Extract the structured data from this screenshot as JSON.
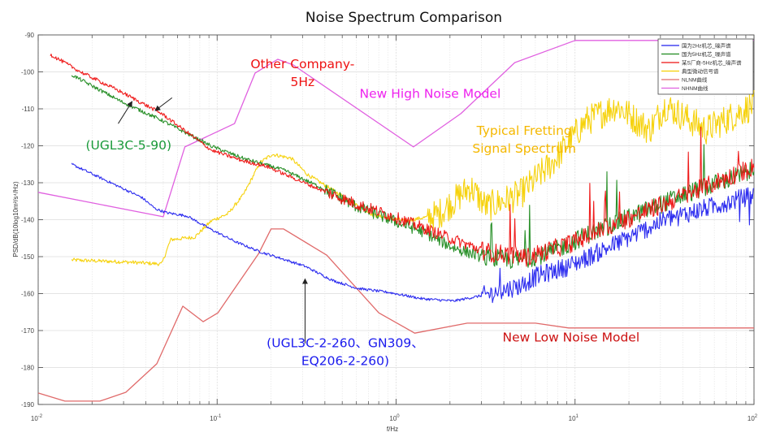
{
  "chart_data": {
    "type": "line",
    "title": "Noise Spectrum Comparison",
    "xlabel": "f/Hz",
    "ylabel": "PSD/dB(10log10m²/s⁴/Hz)",
    "xscale": "log",
    "xlim": [
      0.01,
      100
    ],
    "ylim": [
      -190,
      -90
    ],
    "grid": true,
    "legend_position": "top-right",
    "x_ticks": [
      {
        "value": 0.01,
        "base": "10",
        "exp": "-2"
      },
      {
        "value": 0.1,
        "base": "10",
        "exp": "-1"
      },
      {
        "value": 1,
        "base": "10",
        "exp": "0"
      },
      {
        "value": 10,
        "base": "10",
        "exp": "1"
      },
      {
        "value": 100,
        "base": "10",
        "exp": "2"
      }
    ],
    "y_ticks": [
      -90,
      -100,
      -110,
      -120,
      -130,
      -140,
      -150,
      -160,
      -170,
      -180,
      -190
    ],
    "series": [
      {
        "name": "国为2Hz机芯_噪声谱",
        "color": "#2222ee",
        "noisy_from": 3.0,
        "points": [
          [
            0.0154,
            -125
          ],
          [
            0.038,
            -134
          ],
          [
            0.045,
            -137
          ],
          [
            0.052,
            -138.1
          ],
          [
            0.068,
            -139
          ],
          [
            0.093,
            -142.7
          ],
          [
            0.127,
            -146
          ],
          [
            0.174,
            -148.7
          ],
          [
            0.225,
            -150.4
          ],
          [
            0.31,
            -152.6
          ],
          [
            0.44,
            -156.4
          ],
          [
            0.61,
            -158.6
          ],
          [
            0.92,
            -159.7
          ],
          [
            1.4,
            -161.4
          ],
          [
            2.1,
            -162
          ],
          [
            3.2,
            -160.3
          ],
          [
            4.9,
            -157.9
          ],
          [
            6.1,
            -155.3
          ],
          [
            9.2,
            -152.6
          ],
          [
            17,
            -146.5
          ],
          [
            32,
            -139.9
          ],
          [
            100,
            -133.3
          ]
        ]
      },
      {
        "name": "国为5Hz机芯_噪声谱",
        "color": "#1e8a1e",
        "noisy_from": 0.4,
        "points": [
          [
            0.0154,
            -100.8
          ],
          [
            0.029,
            -108
          ],
          [
            0.049,
            -113.1
          ],
          [
            0.093,
            -120.1
          ],
          [
            0.14,
            -123.4
          ],
          [
            0.24,
            -126.7
          ],
          [
            0.4,
            -131.8
          ],
          [
            0.61,
            -136.6
          ],
          [
            0.92,
            -139.9
          ],
          [
            1.4,
            -143.2
          ],
          [
            2.1,
            -147.6
          ],
          [
            3.2,
            -150.4
          ],
          [
            4.9,
            -151
          ],
          [
            7.5,
            -148.7
          ],
          [
            11.4,
            -144.3
          ],
          [
            21.5,
            -138.8
          ],
          [
            40,
            -133.3
          ],
          [
            100,
            -126.7
          ]
        ]
      },
      {
        "name": "某S厂商-5Hz机芯_噪声谱",
        "color": "#ee1111",
        "noisy_from": 0.4,
        "points": [
          [
            0.0117,
            -95.3
          ],
          [
            0.0174,
            -100.1
          ],
          [
            0.029,
            -105.4
          ],
          [
            0.049,
            -111.3
          ],
          [
            0.093,
            -121.2
          ],
          [
            0.14,
            -124.1
          ],
          [
            0.19,
            -125.6
          ],
          [
            0.26,
            -128.5
          ],
          [
            0.4,
            -132.4
          ],
          [
            0.61,
            -135.9
          ],
          [
            0.92,
            -138.8
          ],
          [
            1.4,
            -142.1
          ],
          [
            2.1,
            -145.4
          ],
          [
            3.2,
            -148.7
          ],
          [
            5.4,
            -150.2
          ],
          [
            9.2,
            -146.6
          ],
          [
            17,
            -141.1
          ],
          [
            32,
            -135.6
          ],
          [
            100,
            -125.6
          ]
        ]
      },
      {
        "name": "典型微动信号谱",
        "color": "#f5d000",
        "noisy_from": 1.5,
        "points": [
          [
            0.0154,
            -150.9
          ],
          [
            0.0326,
            -151.5
          ],
          [
            0.049,
            -152
          ],
          [
            0.055,
            -145.4
          ],
          [
            0.075,
            -144.7
          ],
          [
            0.093,
            -140.3
          ],
          [
            0.115,
            -138.4
          ],
          [
            0.14,
            -133.3
          ],
          [
            0.174,
            -124.5
          ],
          [
            0.203,
            -122.3
          ],
          [
            0.26,
            -123.4
          ],
          [
            0.32,
            -127.8
          ],
          [
            0.49,
            -133.3
          ],
          [
            0.75,
            -138.8
          ],
          [
            1.13,
            -140.3
          ],
          [
            1.7,
            -138.8
          ],
          [
            2.6,
            -131.1
          ],
          [
            3.2,
            -136.6
          ],
          [
            4.9,
            -133.3
          ],
          [
            7.5,
            -124.5
          ],
          [
            11.4,
            -113.5
          ],
          [
            17,
            -109.1
          ],
          [
            26,
            -115.7
          ],
          [
            32,
            -109.1
          ],
          [
            54,
            -115.7
          ],
          [
            100,
            -108.9
          ]
        ]
      },
      {
        "name": "NLNM曲线",
        "color": "#e06a6a",
        "noisy_from": null,
        "points": [
          [
            0.01,
            -186.9
          ],
          [
            0.0141,
            -189.1
          ],
          [
            0.0221,
            -189.1
          ],
          [
            0.0309,
            -186.7
          ],
          [
            0.046,
            -179
          ],
          [
            0.0643,
            -163.4
          ],
          [
            0.0836,
            -167.6
          ],
          [
            0.101,
            -165.2
          ],
          [
            0.17,
            -149.3
          ],
          [
            0.2,
            -142.5
          ],
          [
            0.235,
            -142.5
          ],
          [
            0.41,
            -149.6
          ],
          [
            0.8,
            -165.2
          ],
          [
            1.27,
            -170.7
          ],
          [
            2.5,
            -168
          ],
          [
            6.0,
            -168
          ],
          [
            9.2,
            -169.3
          ],
          [
            100,
            -169.3
          ]
        ]
      },
      {
        "name": "NHNM曲线",
        "color": "#e060e0",
        "noisy_from": null,
        "points": [
          [
            0.01,
            -132.6
          ],
          [
            0.05,
            -139.2
          ],
          [
            0.066,
            -120.3
          ],
          [
            0.125,
            -114
          ],
          [
            0.163,
            -100.3
          ],
          [
            0.218,
            -96.6
          ],
          [
            0.266,
            -98.1
          ],
          [
            1.25,
            -120.3
          ],
          [
            2.3,
            -111.3
          ],
          [
            4.6,
            -97.5
          ],
          [
            10,
            -91.5
          ],
          [
            100,
            -91.5
          ]
        ]
      }
    ],
    "annotations": [
      {
        "id": "other-company",
        "lines": [
          "Other Company-",
          "5Hz"
        ],
        "color": "#ee1111",
        "x": 0.3,
        "y": -99
      },
      {
        "id": "ugl3c-5-90",
        "lines": [
          "(UGL3C-5-90)"
        ],
        "color": "#1a9a3a",
        "x": 0.032,
        "y": -121
      },
      {
        "id": "new-high-noise-model",
        "lines": [
          "New High Noise Model"
        ],
        "color": "#ee22ee",
        "x": 1.55,
        "y": -107
      },
      {
        "id": "typical-fretting",
        "lines": [
          "Typical Fretting",
          "Signal Spectrum"
        ],
        "color": "#f5b800",
        "x": 5.2,
        "y": -117
      },
      {
        "id": "ugl3c-2-260",
        "lines": [
          "(UGL3C-2-260、GN309、",
          "EQ206-2-260)"
        ],
        "color": "#1a1aee",
        "x": 0.52,
        "y": -174.5
      },
      {
        "id": "new-low-noise-model",
        "lines": [
          "New Low Noise Model"
        ],
        "color": "#cc1111",
        "x": 9.5,
        "y": -173
      }
    ],
    "arrows": [
      {
        "id": "arrow-other-company",
        "from": [
          0.056,
          -107
        ],
        "to": [
          0.045,
          -110.5
        ]
      },
      {
        "id": "arrow-ugl3c-5-90",
        "from": [
          0.028,
          -114
        ],
        "to": [
          0.0335,
          -108
        ]
      },
      {
        "id": "arrow-ugl3c-2-260",
        "from": [
          0.31,
          -173.5
        ],
        "to": [
          0.31,
          -156
        ]
      }
    ]
  }
}
